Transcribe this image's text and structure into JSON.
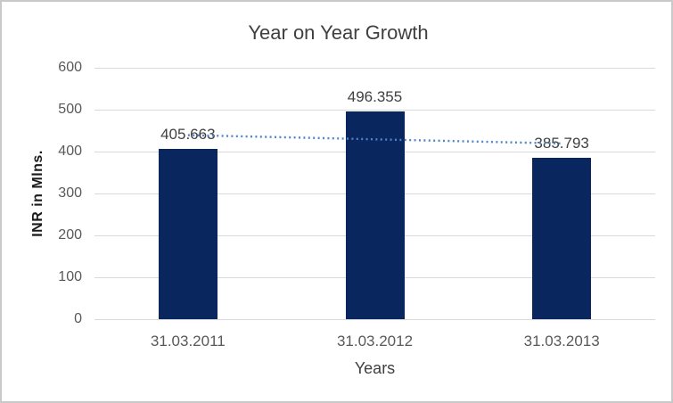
{
  "chart": {
    "title": "Year on Year Growth",
    "colors": {
      "bar": "#09265e",
      "trendline": "#4e86c8",
      "gridline": "#d9d9d9",
      "axis_line": "#d9d9d9",
      "title_text": "#404040",
      "tick_text": "#595959",
      "frame_border": "#c9c9c9"
    }
  },
  "chart_data": {
    "type": "bar",
    "title": "Year on Year Growth",
    "categories": [
      "31.03.2011",
      "31.03.2012",
      "31.03.2013"
    ],
    "values": [
      405.663,
      496.355,
      385.793
    ],
    "data_labels": [
      "405.663",
      "496.355",
      "385.793"
    ],
    "xlabel": "Years",
    "ylabel": "INR in Mlns.",
    "ylim": [
      0,
      600
    ],
    "y_ticks": [
      0,
      100,
      200,
      300,
      400,
      500,
      600
    ],
    "grid": true,
    "legend": "none",
    "trendline": {
      "type": "linear",
      "style": "dotted",
      "series": "values"
    }
  }
}
